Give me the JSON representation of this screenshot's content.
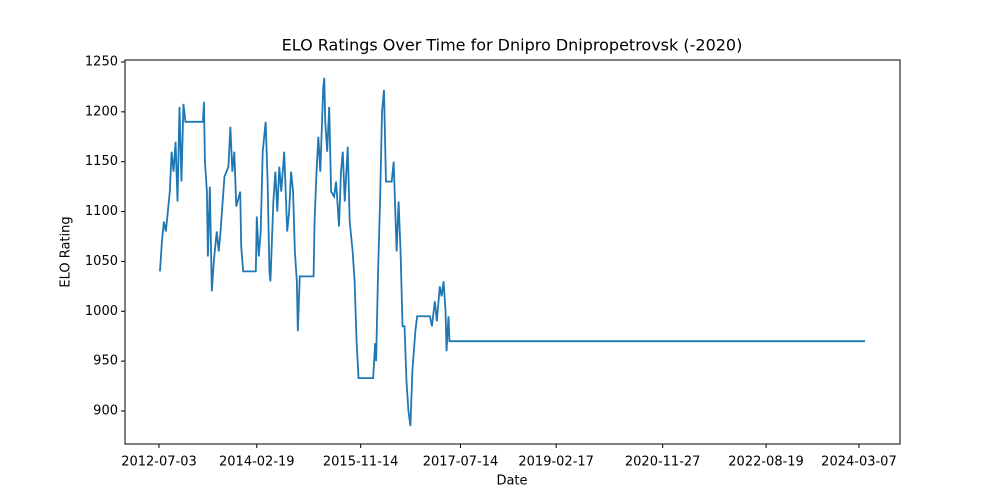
{
  "chart_data": {
    "type": "line",
    "title": "ELO Ratings Over Time for Dnipro Dnipropetrovsk (-2020)",
    "x_label": "Date",
    "y_label": "ELO Rating",
    "x": [
      "2012-07-09",
      "2012-07-21",
      "2012-08-02",
      "2012-08-14",
      "2012-08-26",
      "2012-09-07",
      "2012-09-18",
      "2012-09-30",
      "2012-10-12",
      "2012-10-24",
      "2012-11-05",
      "2012-11-17",
      "2012-11-29",
      "2012-12-11",
      "2013-03-28",
      "2013-04-03",
      "2013-04-09",
      "2013-04-21",
      "2013-04-27",
      "2013-05-09",
      "2013-05-21",
      "2013-06-02",
      "2013-06-20",
      "2013-07-02",
      "2013-07-13",
      "2013-08-06",
      "2013-08-30",
      "2013-09-11",
      "2013-09-23",
      "2013-10-05",
      "2013-10-17",
      "2013-11-10",
      "2013-11-16",
      "2013-11-28",
      "2014-02-13",
      "2014-02-19",
      "2014-03-03",
      "2014-03-15",
      "2014-03-27",
      "2014-04-14",
      "2014-04-26",
      "2014-05-07",
      "2014-05-13",
      "2014-05-31",
      "2014-06-12",
      "2014-06-24",
      "2014-07-06",
      "2014-07-18",
      "2014-08-05",
      "2014-08-23",
      "2014-09-04",
      "2014-09-16",
      "2014-09-28",
      "2014-10-09",
      "2014-10-21",
      "2014-10-27",
      "2014-11-08",
      "2015-01-31",
      "2015-02-06",
      "2015-02-18",
      "2015-03-01",
      "2015-03-13",
      "2015-03-31",
      "2015-04-06",
      "2015-04-12",
      "2015-04-24",
      "2015-05-06",
      "2015-05-18",
      "2015-06-05",
      "2015-06-17",
      "2015-07-05",
      "2015-07-17",
      "2015-07-28",
      "2015-08-09",
      "2015-08-27",
      "2015-09-08",
      "2015-09-26",
      "2015-10-08",
      "2015-10-20",
      "2015-11-01",
      "2016-01-29",
      "2016-02-10",
      "2016-02-16",
      "2016-02-28",
      "2016-03-11",
      "2016-03-23",
      "2016-04-04",
      "2016-04-16",
      "2016-05-21",
      "2016-06-02",
      "2016-06-20",
      "2016-07-02",
      "2016-07-14",
      "2016-07-26",
      "2016-08-07",
      "2016-08-19",
      "2016-08-31",
      "2016-09-12",
      "2016-09-24",
      "2016-10-12",
      "2016-10-23",
      "2017-01-09",
      "2017-01-21",
      "2017-02-08",
      "2017-02-20",
      "2017-03-10",
      "2017-03-21",
      "2017-04-02",
      "2017-04-14",
      "2017-04-20",
      "2017-05-02",
      "2017-05-08",
      "2024-04-13"
    ],
    "series": [
      {
        "name": "ELO",
        "color": "#1f77b4",
        "values": [
          1040,
          1070,
          1090,
          1080,
          1100,
          1120,
          1160,
          1140,
          1170,
          1110,
          1205,
          1130,
          1208,
          1190,
          1190,
          1210,
          1150,
          1120,
          1055,
          1125,
          1020,
          1050,
          1080,
          1060,
          1080,
          1135,
          1145,
          1185,
          1140,
          1160,
          1105,
          1120,
          1065,
          1040,
          1040,
          1095,
          1055,
          1080,
          1160,
          1190,
          1130,
          1040,
          1030,
          1110,
          1140,
          1100,
          1145,
          1120,
          1160,
          1080,
          1100,
          1140,
          1120,
          1060,
          1030,
          980,
          1035,
          1035,
          1090,
          1140,
          1175,
          1140,
          1225,
          1234,
          1190,
          1160,
          1205,
          1120,
          1115,
          1130,
          1085,
          1140,
          1160,
          1110,
          1165,
          1090,
          1060,
          1030,
          970,
          933,
          933,
          968,
          950,
          1040,
          1110,
          1200,
          1222,
          1130,
          1130,
          1150,
          1060,
          1110,
          1060,
          985,
          985,
          930,
          900,
          885,
          940,
          980,
          995,
          995,
          985,
          1010,
          990,
          1025,
          1015,
          1030,
          1000,
          960,
          995,
          970,
          970
        ]
      }
    ],
    "xlim": [
      "2011-12-09",
      "2024-11-12"
    ],
    "xticks": [
      "2012-07-03",
      "2014-02-19",
      "2015-11-14",
      "2017-07-14",
      "2019-02-17",
      "2020-11-27",
      "2022-08-19",
      "2024-03-07"
    ],
    "ylim": [
      866.9,
      1252
    ],
    "yticks": [
      900,
      950,
      1000,
      1050,
      1100,
      1150,
      1200,
      1250
    ]
  }
}
